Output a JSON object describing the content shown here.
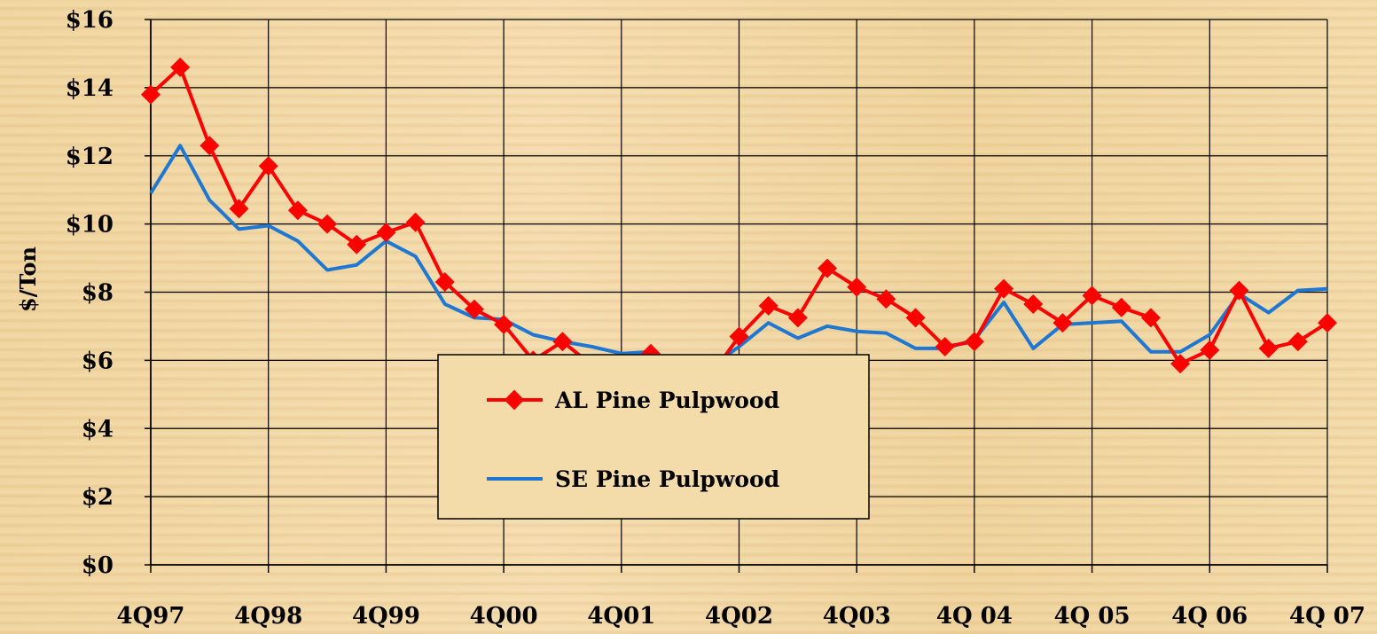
{
  "chart_data": {
    "type": "line",
    "ylabel": "$/Ton",
    "ylim": [
      0,
      16
    ],
    "y_ticks": [
      "$0",
      "$2",
      "$4",
      "$6",
      "$8",
      "$10",
      "$12",
      "$14",
      "$16"
    ],
    "x_tick_labels": [
      "4Q97",
      "4Q98",
      "4Q99",
      "4Q00",
      "4Q01",
      "4Q02",
      "4Q03",
      "4Q 04",
      "4Q 05",
      "4Q 06",
      "4Q 07"
    ],
    "grid": true,
    "legend_position": "center-bottom",
    "series": [
      {
        "name": "AL Pine Pulpwood",
        "color": "#ff0000",
        "marker": "diamond",
        "values": [
          13.8,
          14.6,
          12.3,
          10.45,
          11.7,
          10.4,
          10.0,
          9.4,
          9.75,
          10.05,
          8.3,
          7.5,
          7.05,
          6.0,
          6.55,
          5.85,
          5.85,
          6.2,
          5.3,
          5.5,
          6.7,
          7.6,
          7.25,
          8.7,
          8.15,
          7.8,
          7.25,
          6.4,
          6.55,
          8.1,
          7.65,
          7.1,
          7.9,
          7.55,
          7.25,
          5.9,
          6.3,
          8.05,
          6.35,
          6.55,
          7.1
        ]
      },
      {
        "name": "SE Pine Pulpwood",
        "color": "#1e78d2",
        "values": [
          10.9,
          12.3,
          10.7,
          9.85,
          9.95,
          9.5,
          8.65,
          8.8,
          9.5,
          9.05,
          7.65,
          7.25,
          7.2,
          6.75,
          6.55,
          6.4,
          6.2,
          6.25,
          5.85,
          5.8,
          6.4,
          7.1,
          6.65,
          7.0,
          6.85,
          6.8,
          6.35,
          6.35,
          6.6,
          7.7,
          6.35,
          7.05,
          7.1,
          7.15,
          6.25,
          6.25,
          6.75,
          7.95,
          7.4,
          8.05,
          8.1
        ]
      }
    ]
  }
}
